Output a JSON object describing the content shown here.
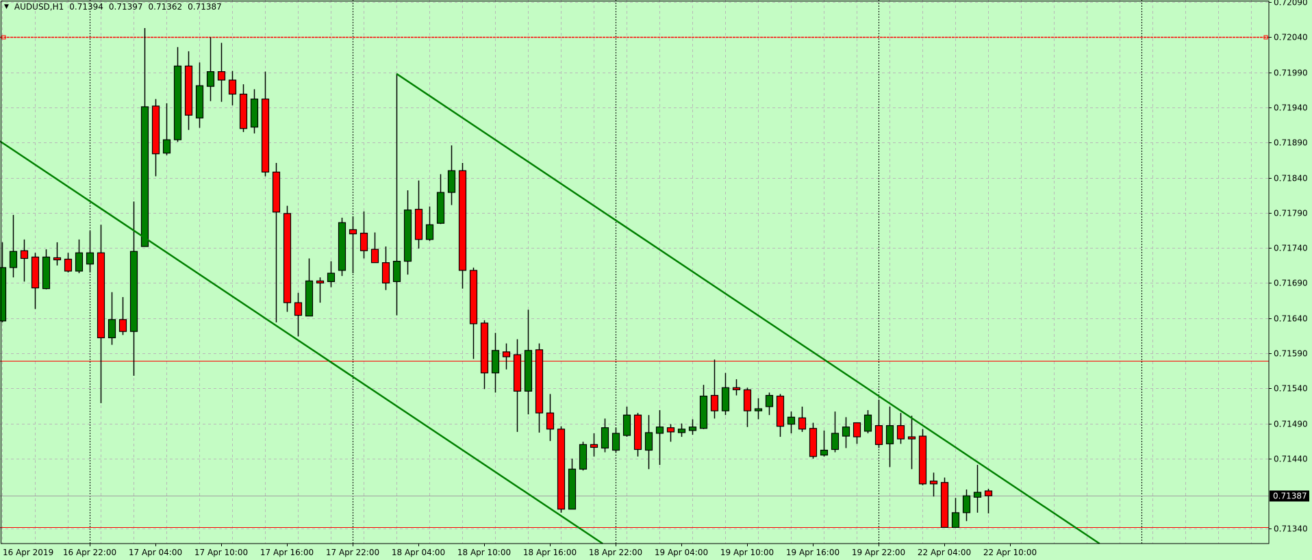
{
  "header": {
    "menu_icon": "triangle-down-icon",
    "symbol": "AUDUSD,H1",
    "open": "0.71394",
    "high": "0.71397",
    "low": "0.71362",
    "close": "0.71387"
  },
  "colors": {
    "background": "#c4fcc4",
    "bull": "#008000",
    "bear": "#ff0000",
    "outline": "#000000",
    "trendline": "#008000",
    "grid": "#b8b8b8",
    "hline": "#ff0000",
    "bid_line": "#a0a0a0"
  },
  "chart_data": {
    "type": "candlestick",
    "symbol": "AUDUSD",
    "timeframe": "H1",
    "grid": true,
    "ylim": [
      0.71319,
      0.72093
    ],
    "xlim_bars": [
      -0.2,
      115.6
    ],
    "y_ticks": [
      "0.72090",
      "0.72040",
      "0.71990",
      "0.71940",
      "0.71890",
      "0.71840",
      "0.71790",
      "0.71740",
      "0.71690",
      "0.71640",
      "0.71590",
      "0.71540",
      "0.71490",
      "0.71440",
      "0.71340"
    ],
    "x_ticks": [
      {
        "label": "16 Apr 2019",
        "bar": 0
      },
      {
        "label": "16 Apr 22:00",
        "bar": 8
      },
      {
        "label": "17 Apr 04:00",
        "bar": 14
      },
      {
        "label": "17 Apr 10:00",
        "bar": 20
      },
      {
        "label": "17 Apr 16:00",
        "bar": 26
      },
      {
        "label": "17 Apr 22:00",
        "bar": 32
      },
      {
        "label": "18 Apr 04:00",
        "bar": 38
      },
      {
        "label": "18 Apr 10:00",
        "bar": 44
      },
      {
        "label": "18 Apr 16:00",
        "bar": 50
      },
      {
        "label": "18 Apr 22:00",
        "bar": 56
      },
      {
        "label": "19 Apr 04:00",
        "bar": 62
      },
      {
        "label": "19 Apr 10:00",
        "bar": 68
      },
      {
        "label": "19 Apr 16:00",
        "bar": 74
      },
      {
        "label": "19 Apr 22:00",
        "bar": 80
      },
      {
        "label": "22 Apr 04:00",
        "bar": 86
      },
      {
        "label": "22 Apr 10:00",
        "bar": 92
      }
    ],
    "period_separators_bars": [
      8,
      32,
      56,
      80,
      104
    ],
    "bars_ohlc": [
      [
        0.71636,
        0.71748,
        0.71634,
        0.71712
      ],
      [
        0.71712,
        0.71787,
        0.71698,
        0.71735
      ],
      [
        0.71736,
        0.71752,
        0.71692,
        0.71725
      ],
      [
        0.71727,
        0.71733,
        0.71653,
        0.71683
      ],
      [
        0.71682,
        0.71738,
        0.71681,
        0.71727
      ],
      [
        0.71726,
        0.71748,
        0.71715,
        0.71723
      ],
      [
        0.71724,
        0.71733,
        0.71705,
        0.71707
      ],
      [
        0.71707,
        0.71752,
        0.71704,
        0.71733
      ],
      [
        0.71717,
        0.71764,
        0.71705,
        0.71733
      ],
      [
        0.71733,
        0.71773,
        0.71519,
        0.71612
      ],
      [
        0.71612,
        0.71677,
        0.71602,
        0.71638
      ],
      [
        0.71638,
        0.7167,
        0.71616,
        0.71621
      ],
      [
        0.71621,
        0.71806,
        0.71558,
        0.71735
      ],
      [
        0.71742,
        0.72053,
        0.71742,
        0.71941
      ],
      [
        0.71942,
        0.71952,
        0.71842,
        0.71874
      ],
      [
        0.71875,
        0.71946,
        0.71872,
        0.71894
      ],
      [
        0.71894,
        0.72026,
        0.71891,
        0.71999
      ],
      [
        0.71999,
        0.7202,
        0.71908,
        0.71929
      ],
      [
        0.71925,
        0.72004,
        0.71911,
        0.71971
      ],
      [
        0.7197,
        0.7204,
        0.71949,
        0.71991
      ],
      [
        0.71991,
        0.72032,
        0.71948,
        0.71979
      ],
      [
        0.71979,
        0.71992,
        0.71943,
        0.71959
      ],
      [
        0.71959,
        0.71973,
        0.71905,
        0.7191
      ],
      [
        0.71912,
        0.71966,
        0.71903,
        0.71952
      ],
      [
        0.71952,
        0.71991,
        0.71842,
        0.71848
      ],
      [
        0.71848,
        0.71861,
        0.71634,
        0.71791
      ],
      [
        0.71789,
        0.718,
        0.71649,
        0.71662
      ],
      [
        0.71662,
        0.71676,
        0.71614,
        0.71644
      ],
      [
        0.71643,
        0.71725,
        0.71643,
        0.71693
      ],
      [
        0.71693,
        0.71698,
        0.71662,
        0.7169
      ],
      [
        0.71692,
        0.71721,
        0.71684,
        0.71704
      ],
      [
        0.71708,
        0.71783,
        0.717,
        0.71776
      ],
      [
        0.71766,
        0.71785,
        0.71704,
        0.7176
      ],
      [
        0.71761,
        0.71792,
        0.71725,
        0.71736
      ],
      [
        0.71738,
        0.71762,
        0.71719,
        0.71719
      ],
      [
        0.71719,
        0.71742,
        0.7168,
        0.7169
      ],
      [
        0.71692,
        0.71988,
        0.71644,
        0.71721
      ],
      [
        0.71721,
        0.71822,
        0.71702,
        0.71794
      ],
      [
        0.71795,
        0.71836,
        0.71739,
        0.71752
      ],
      [
        0.71752,
        0.71799,
        0.7175,
        0.71773
      ],
      [
        0.71775,
        0.71845,
        0.71774,
        0.71819
      ],
      [
        0.71819,
        0.71886,
        0.71801,
        0.7185
      ],
      [
        0.7185,
        0.71861,
        0.71682,
        0.71708
      ],
      [
        0.71708,
        0.71712,
        0.71582,
        0.71632
      ],
      [
        0.71633,
        0.71637,
        0.71539,
        0.71562
      ],
      [
        0.71562,
        0.71619,
        0.71534,
        0.71594
      ],
      [
        0.71592,
        0.71604,
        0.71567,
        0.71585
      ],
      [
        0.71588,
        0.7161,
        0.71478,
        0.71536
      ],
      [
        0.71536,
        0.71652,
        0.71503,
        0.71594
      ],
      [
        0.71595,
        0.71604,
        0.71477,
        0.71505
      ],
      [
        0.71505,
        0.71532,
        0.71465,
        0.71482
      ],
      [
        0.71482,
        0.71486,
        0.71363,
        0.71368
      ],
      [
        0.71368,
        0.7144,
        0.71368,
        0.71425
      ],
      [
        0.71425,
        0.71464,
        0.71423,
        0.7146
      ],
      [
        0.7146,
        0.71476,
        0.71443,
        0.71456
      ],
      [
        0.71455,
        0.71497,
        0.71449,
        0.71484
      ],
      [
        0.71452,
        0.71484,
        0.71449,
        0.71476
      ],
      [
        0.71473,
        0.71514,
        0.71471,
        0.71502
      ],
      [
        0.71502,
        0.71505,
        0.71443,
        0.71453
      ],
      [
        0.71452,
        0.71502,
        0.71425,
        0.71477
      ],
      [
        0.71476,
        0.71509,
        0.71431,
        0.71485
      ],
      [
        0.71484,
        0.71489,
        0.71464,
        0.71478
      ],
      [
        0.71477,
        0.7149,
        0.71471,
        0.71482
      ],
      [
        0.7148,
        0.71496,
        0.71474,
        0.71485
      ],
      [
        0.71483,
        0.71545,
        0.71482,
        0.71529
      ],
      [
        0.7153,
        0.71581,
        0.71497,
        0.71508
      ],
      [
        0.71508,
        0.71562,
        0.71502,
        0.71541
      ],
      [
        0.71541,
        0.71553,
        0.7153,
        0.71538
      ],
      [
        0.71538,
        0.71541,
        0.71485,
        0.71508
      ],
      [
        0.71508,
        0.71526,
        0.71496,
        0.71511
      ],
      [
        0.71514,
        0.71534,
        0.71502,
        0.7153
      ],
      [
        0.71529,
        0.71532,
        0.71471,
        0.71486
      ],
      [
        0.71489,
        0.71507,
        0.71476,
        0.71499
      ],
      [
        0.71498,
        0.71514,
        0.71478,
        0.71482
      ],
      [
        0.71483,
        0.71491,
        0.7144,
        0.71443
      ],
      [
        0.71445,
        0.7148,
        0.71443,
        0.71452
      ],
      [
        0.71453,
        0.71507,
        0.71449,
        0.71476
      ],
      [
        0.71472,
        0.71499,
        0.71455,
        0.71485
      ],
      [
        0.71491,
        0.71491,
        0.71461,
        0.71471
      ],
      [
        0.71479,
        0.71509,
        0.71476,
        0.71502
      ],
      [
        0.71487,
        0.71524,
        0.71455,
        0.7146
      ],
      [
        0.71461,
        0.71514,
        0.71428,
        0.71487
      ],
      [
        0.71487,
        0.71505,
        0.71461,
        0.71468
      ],
      [
        0.71471,
        0.71501,
        0.71425,
        0.71468
      ],
      [
        0.71472,
        0.71482,
        0.71402,
        0.71404
      ],
      [
        0.71408,
        0.7142,
        0.71386,
        0.71404
      ],
      [
        0.71406,
        0.71413,
        0.71342,
        0.71342
      ],
      [
        0.71342,
        0.71384,
        0.71342,
        0.71363
      ],
      [
        0.71363,
        0.71396,
        0.71351,
        0.71387
      ],
      [
        0.71385,
        0.71431,
        0.71363,
        0.71392
      ],
      [
        0.71394,
        0.71397,
        0.71362,
        0.71387
      ]
    ],
    "horizontal_lines": [
      {
        "price": 0.7204,
        "style": "dashed",
        "color": "#ff0000"
      },
      {
        "price": 0.71579,
        "style": "solid",
        "color": "#ff0000"
      },
      {
        "price": 0.71342,
        "style": "solid",
        "color": "#ff0000"
      }
    ],
    "trendlines": [
      {
        "p1": {
          "bar": 0,
          "price": 0.7189
        },
        "p2": {
          "bar": 36,
          "price": 0.71515
        },
        "ray": true,
        "color": "#008000"
      },
      {
        "p1": {
          "bar": 36,
          "price": 0.71988
        },
        "p2": {
          "bar": 90,
          "price": 0.71425
        },
        "ray": true,
        "color": "#008000"
      }
    ],
    "current_price": "0.71387"
  }
}
